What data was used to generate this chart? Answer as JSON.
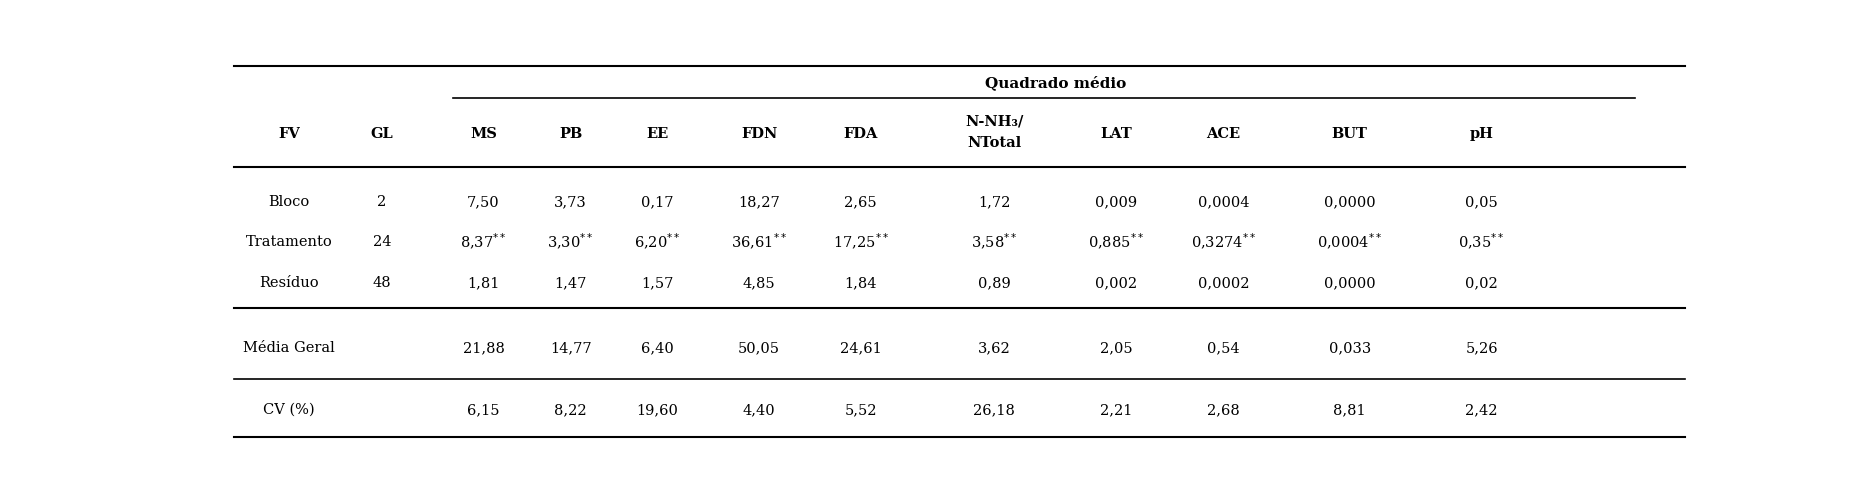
{
  "title": "Quadrado médio",
  "rows": [
    [
      "Bloco",
      "2",
      "7,50",
      "3,73",
      "0,17",
      "18,27",
      "2,65",
      "1,72",
      "0,009",
      "0,0004",
      "0,0000",
      "0,05"
    ],
    [
      "Tratamento",
      "24",
      "8,37**",
      "3,30**",
      "6,20**",
      "36,61**",
      "17,25**",
      "3,58**",
      "0,885**",
      "0,3274**",
      "0,0004**",
      "0,35**"
    ],
    [
      "Resíduo",
      "48",
      "1,81",
      "1,47",
      "1,57",
      "4,85",
      "1,84",
      "0,89",
      "0,002",
      "0,0002",
      "0,0000",
      "0,02"
    ],
    [
      "Média Geral",
      "",
      "21,88",
      "14,77",
      "6,40",
      "50,05",
      "24,61",
      "3,62",
      "2,05",
      "0,54",
      "0,033",
      "5,26"
    ],
    [
      "CV (%)",
      "",
      "6,15",
      "8,22",
      "19,60",
      "4,40",
      "5,52",
      "26,18",
      "2,21",
      "2,68",
      "8,81",
      "2,42"
    ]
  ],
  "col_headers": [
    "MS",
    "PB",
    "EE",
    "FDN",
    "FDA",
    "N-NH₃/\nNTotal",
    "LAT",
    "ACE",
    "BUT",
    "pH"
  ],
  "background_color": "#ffffff",
  "font_size": 10.5,
  "font_size_title": 11,
  "font_size_header": 10.5
}
